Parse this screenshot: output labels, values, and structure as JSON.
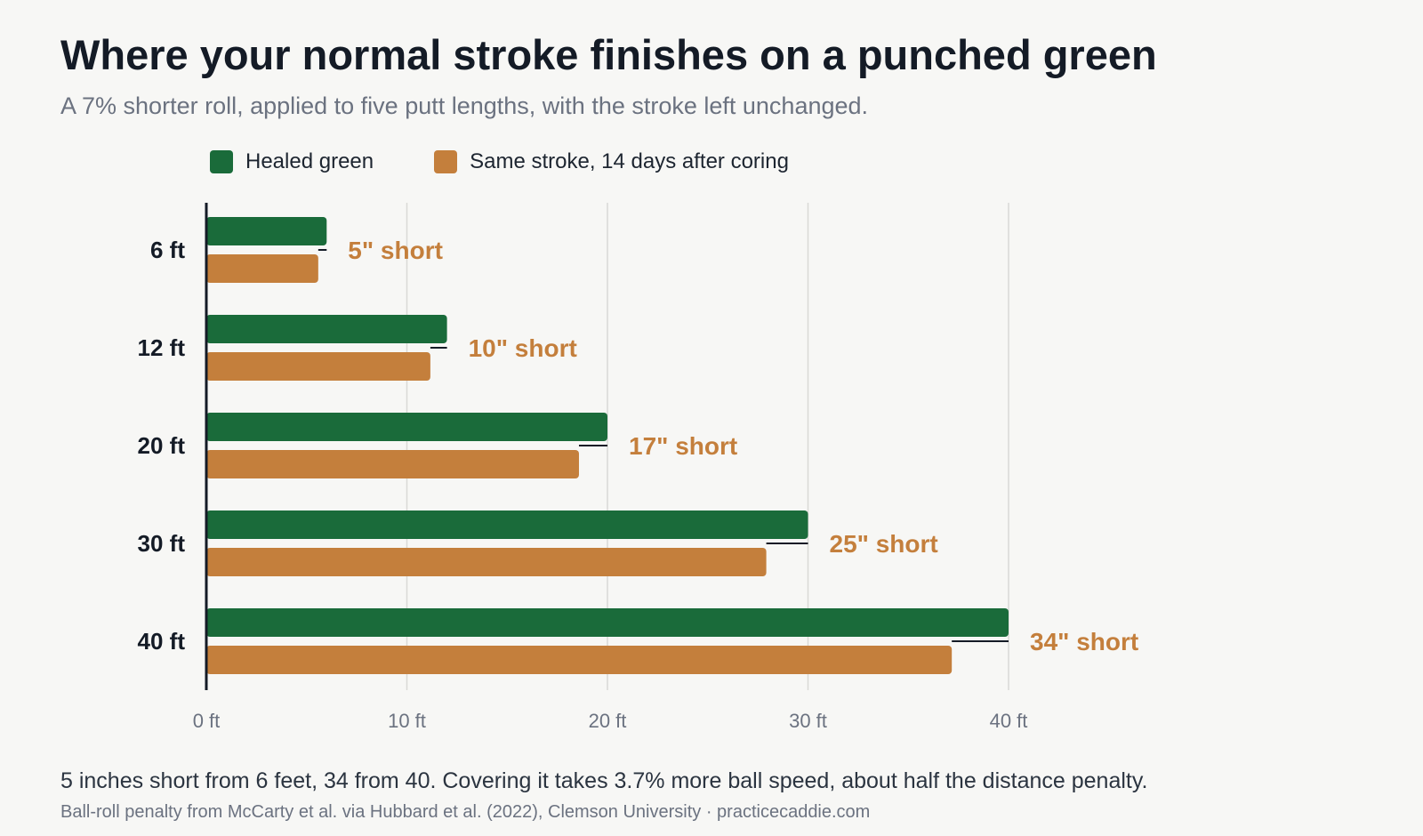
{
  "header": {
    "title": "Where your normal stroke finishes on a punched green",
    "subtitle": "A 7% shorter roll, applied to five putt lengths, with the stroke left unchanged."
  },
  "footer": {
    "note": "5 inches short from 6 feet, 34 from 40. Covering it takes 3.7% more ball speed, about half the distance penalty.",
    "source": "Ball-roll penalty from McCarty et al. via Hubbard et al. (2022), Clemson University · practicecaddie.com"
  },
  "colors": {
    "healed": "#1a6b3a",
    "cored": "#c47f3c",
    "axis": "#141b26",
    "grid": "#d9d9d6"
  },
  "chart_data": {
    "type": "bar",
    "orientation": "horizontal",
    "categories": [
      "6 ft",
      "12 ft",
      "20 ft",
      "30 ft",
      "40 ft"
    ],
    "series": [
      {
        "name": "Healed green",
        "values": [
          6,
          12,
          20,
          30,
          40
        ]
      },
      {
        "name": "Same stroke, 14 days after coring",
        "values": [
          5.58,
          11.17,
          18.58,
          27.92,
          37.17
        ]
      }
    ],
    "annotations": [
      "5\" short",
      "10\" short",
      "17\" short",
      "25\" short",
      "34\" short"
    ],
    "xticks": [
      0,
      10,
      20,
      30,
      40
    ],
    "xtick_labels": [
      "0 ft",
      "10 ft",
      "20 ft",
      "30 ft",
      "40 ft"
    ],
    "xlim": [
      0,
      40
    ],
    "grid": true,
    "legend_position": "top-left"
  }
}
